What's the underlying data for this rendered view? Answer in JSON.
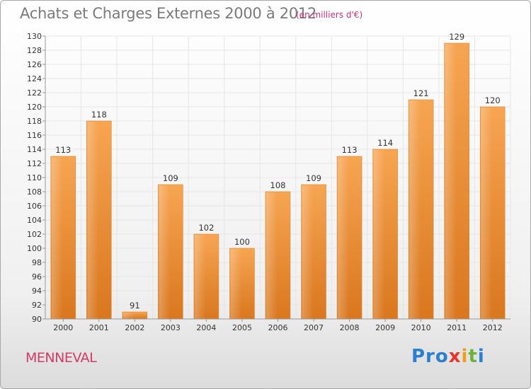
{
  "title": "Achats et Charges Externes 2000 à 2012",
  "subtitle": "(en milliers d'€)",
  "commune": "MENNEVAL",
  "logo": {
    "p1": "Pro",
    "p2": "x",
    "p3": "i",
    "p4": "t",
    "p5": "i"
  },
  "colors": {
    "bar_top": "#f7a552",
    "bar_bottom": "#d9771e",
    "title": "#7a7a7a",
    "subtitle": "#d0307a",
    "commune": "#d33a6a"
  },
  "chart_data": {
    "type": "bar",
    "title": "Achats et Charges Externes 2000 à 2012",
    "subtitle": "(en milliers d'€)",
    "categories": [
      "2000",
      "2001",
      "2002",
      "2003",
      "2004",
      "2005",
      "2006",
      "2007",
      "2008",
      "2009",
      "2010",
      "2011",
      "2012"
    ],
    "values": [
      113,
      118,
      91,
      109,
      102,
      100,
      108,
      109,
      113,
      114,
      121,
      129,
      120
    ],
    "ylim": [
      90,
      130
    ],
    "yticks": [
      90,
      92,
      94,
      96,
      98,
      100,
      102,
      104,
      106,
      108,
      110,
      112,
      114,
      116,
      118,
      120,
      122,
      124,
      126,
      128,
      130
    ],
    "grid": true,
    "xlabel": "",
    "ylabel": ""
  }
}
